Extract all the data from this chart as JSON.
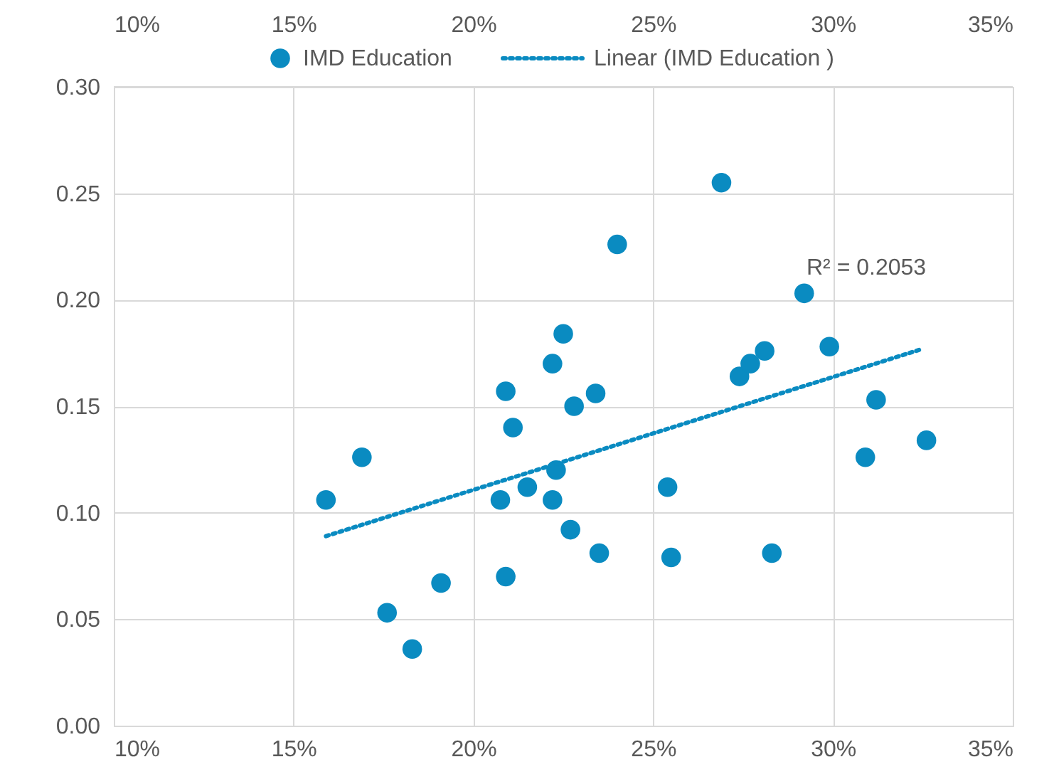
{
  "chart_data": {
    "type": "scatter",
    "x": [
      15.9,
      16.9,
      17.6,
      18.3,
      19.1,
      20.75,
      20.9,
      20.9,
      21.1,
      21.5,
      22.2,
      22.2,
      22.3,
      22.5,
      22.7,
      22.8,
      23.4,
      23.5,
      24.0,
      25.4,
      25.5,
      26.9,
      27.4,
      27.7,
      28.1,
      28.3,
      29.2,
      29.9,
      31.2,
      30.9,
      32.6
    ],
    "series": [
      {
        "name": "IMD Education",
        "type": "scatter",
        "color": "#0a8bc1",
        "marker": "circle",
        "values": [
          0.106,
          0.126,
          0.053,
          0.036,
          0.067,
          0.106,
          0.07,
          0.157,
          0.14,
          0.112,
          0.106,
          0.17,
          0.12,
          0.184,
          0.092,
          0.15,
          0.156,
          0.081,
          0.226,
          0.112,
          0.079,
          0.255,
          0.164,
          0.17,
          0.176,
          0.081,
          0.203,
          0.178,
          0.153,
          0.126,
          0.134
        ]
      },
      {
        "name": "Linear (IMD Education )",
        "type": "line",
        "color": "#0a8bc1",
        "line_style": "dotted",
        "x": [
          15.9,
          32.5
        ],
        "values": [
          0.089,
          0.177
        ]
      }
    ],
    "xlim": [
      10,
      35
    ],
    "xticks": [
      {
        "value": 10,
        "label": "10%"
      },
      {
        "value": 15,
        "label": "15%"
      },
      {
        "value": 20,
        "label": "20%"
      },
      {
        "value": 25,
        "label": "25%"
      },
      {
        "value": 30,
        "label": "30%"
      },
      {
        "value": 35,
        "label": "35%"
      }
    ],
    "x2lim": [
      10,
      35
    ],
    "x2ticks": [
      {
        "value": 10,
        "label": "10%"
      },
      {
        "value": 15,
        "label": "15%"
      },
      {
        "value": 20,
        "label": "20%"
      },
      {
        "value": 25,
        "label": "25%"
      },
      {
        "value": 30,
        "label": "30%"
      },
      {
        "value": 35,
        "label": "35%"
      }
    ],
    "ylim": [
      0,
      0.3
    ],
    "yticks": [
      {
        "value": 0,
        "label": "0.00"
      },
      {
        "value": 0.05,
        "label": "0.05"
      },
      {
        "value": 0.1,
        "label": "0.10"
      },
      {
        "value": 0.15,
        "label": "0.15"
      },
      {
        "value": 0.2,
        "label": "0.20"
      },
      {
        "value": 0.25,
        "label": "0.25"
      },
      {
        "value": 0.3,
        "label": "0.30"
      }
    ],
    "annotations": [
      "R² = 0.2053"
    ],
    "grid": true,
    "legend": "top"
  }
}
